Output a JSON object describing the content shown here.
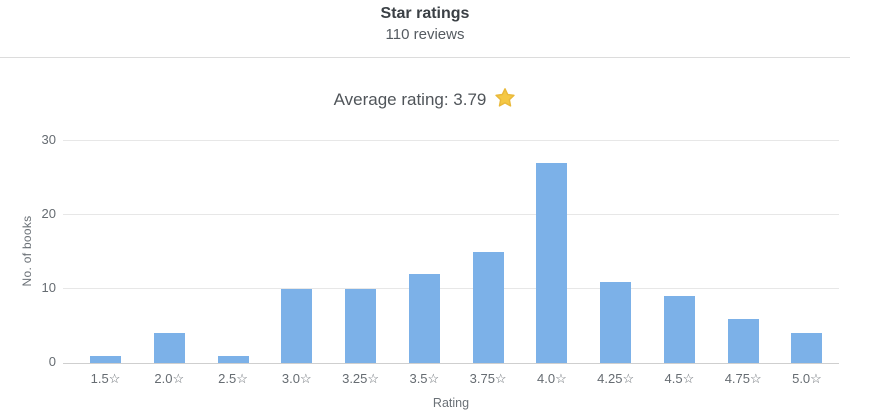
{
  "header": {
    "title": "Star ratings",
    "subtitle": "110 reviews"
  },
  "average_rating": {
    "text": "Average rating: 3.79",
    "value": 3.79,
    "star_color": "#F5C844",
    "star_edge_color": "#E9B93B"
  },
  "chart_data": {
    "type": "bar",
    "title": "Star ratings",
    "subtitle": "110 reviews",
    "categories": [
      "1.5☆",
      "2.0☆",
      "2.5☆",
      "3.0☆",
      "3.25☆",
      "3.5☆",
      "3.75☆",
      "4.0☆",
      "4.25☆",
      "4.5☆",
      "4.75☆",
      "5.0☆"
    ],
    "values": [
      1,
      4,
      1,
      10,
      10,
      12,
      15,
      27,
      11,
      9,
      6,
      4
    ],
    "xlabel": "Rating",
    "ylabel": "No. of books",
    "yticks": [
      0,
      10,
      20,
      30
    ],
    "ylim": [
      0,
      31.5
    ],
    "grid": true,
    "legend": false,
    "bar_color": "#7CB1E8",
    "gridline_color": "#E7E7E7"
  }
}
